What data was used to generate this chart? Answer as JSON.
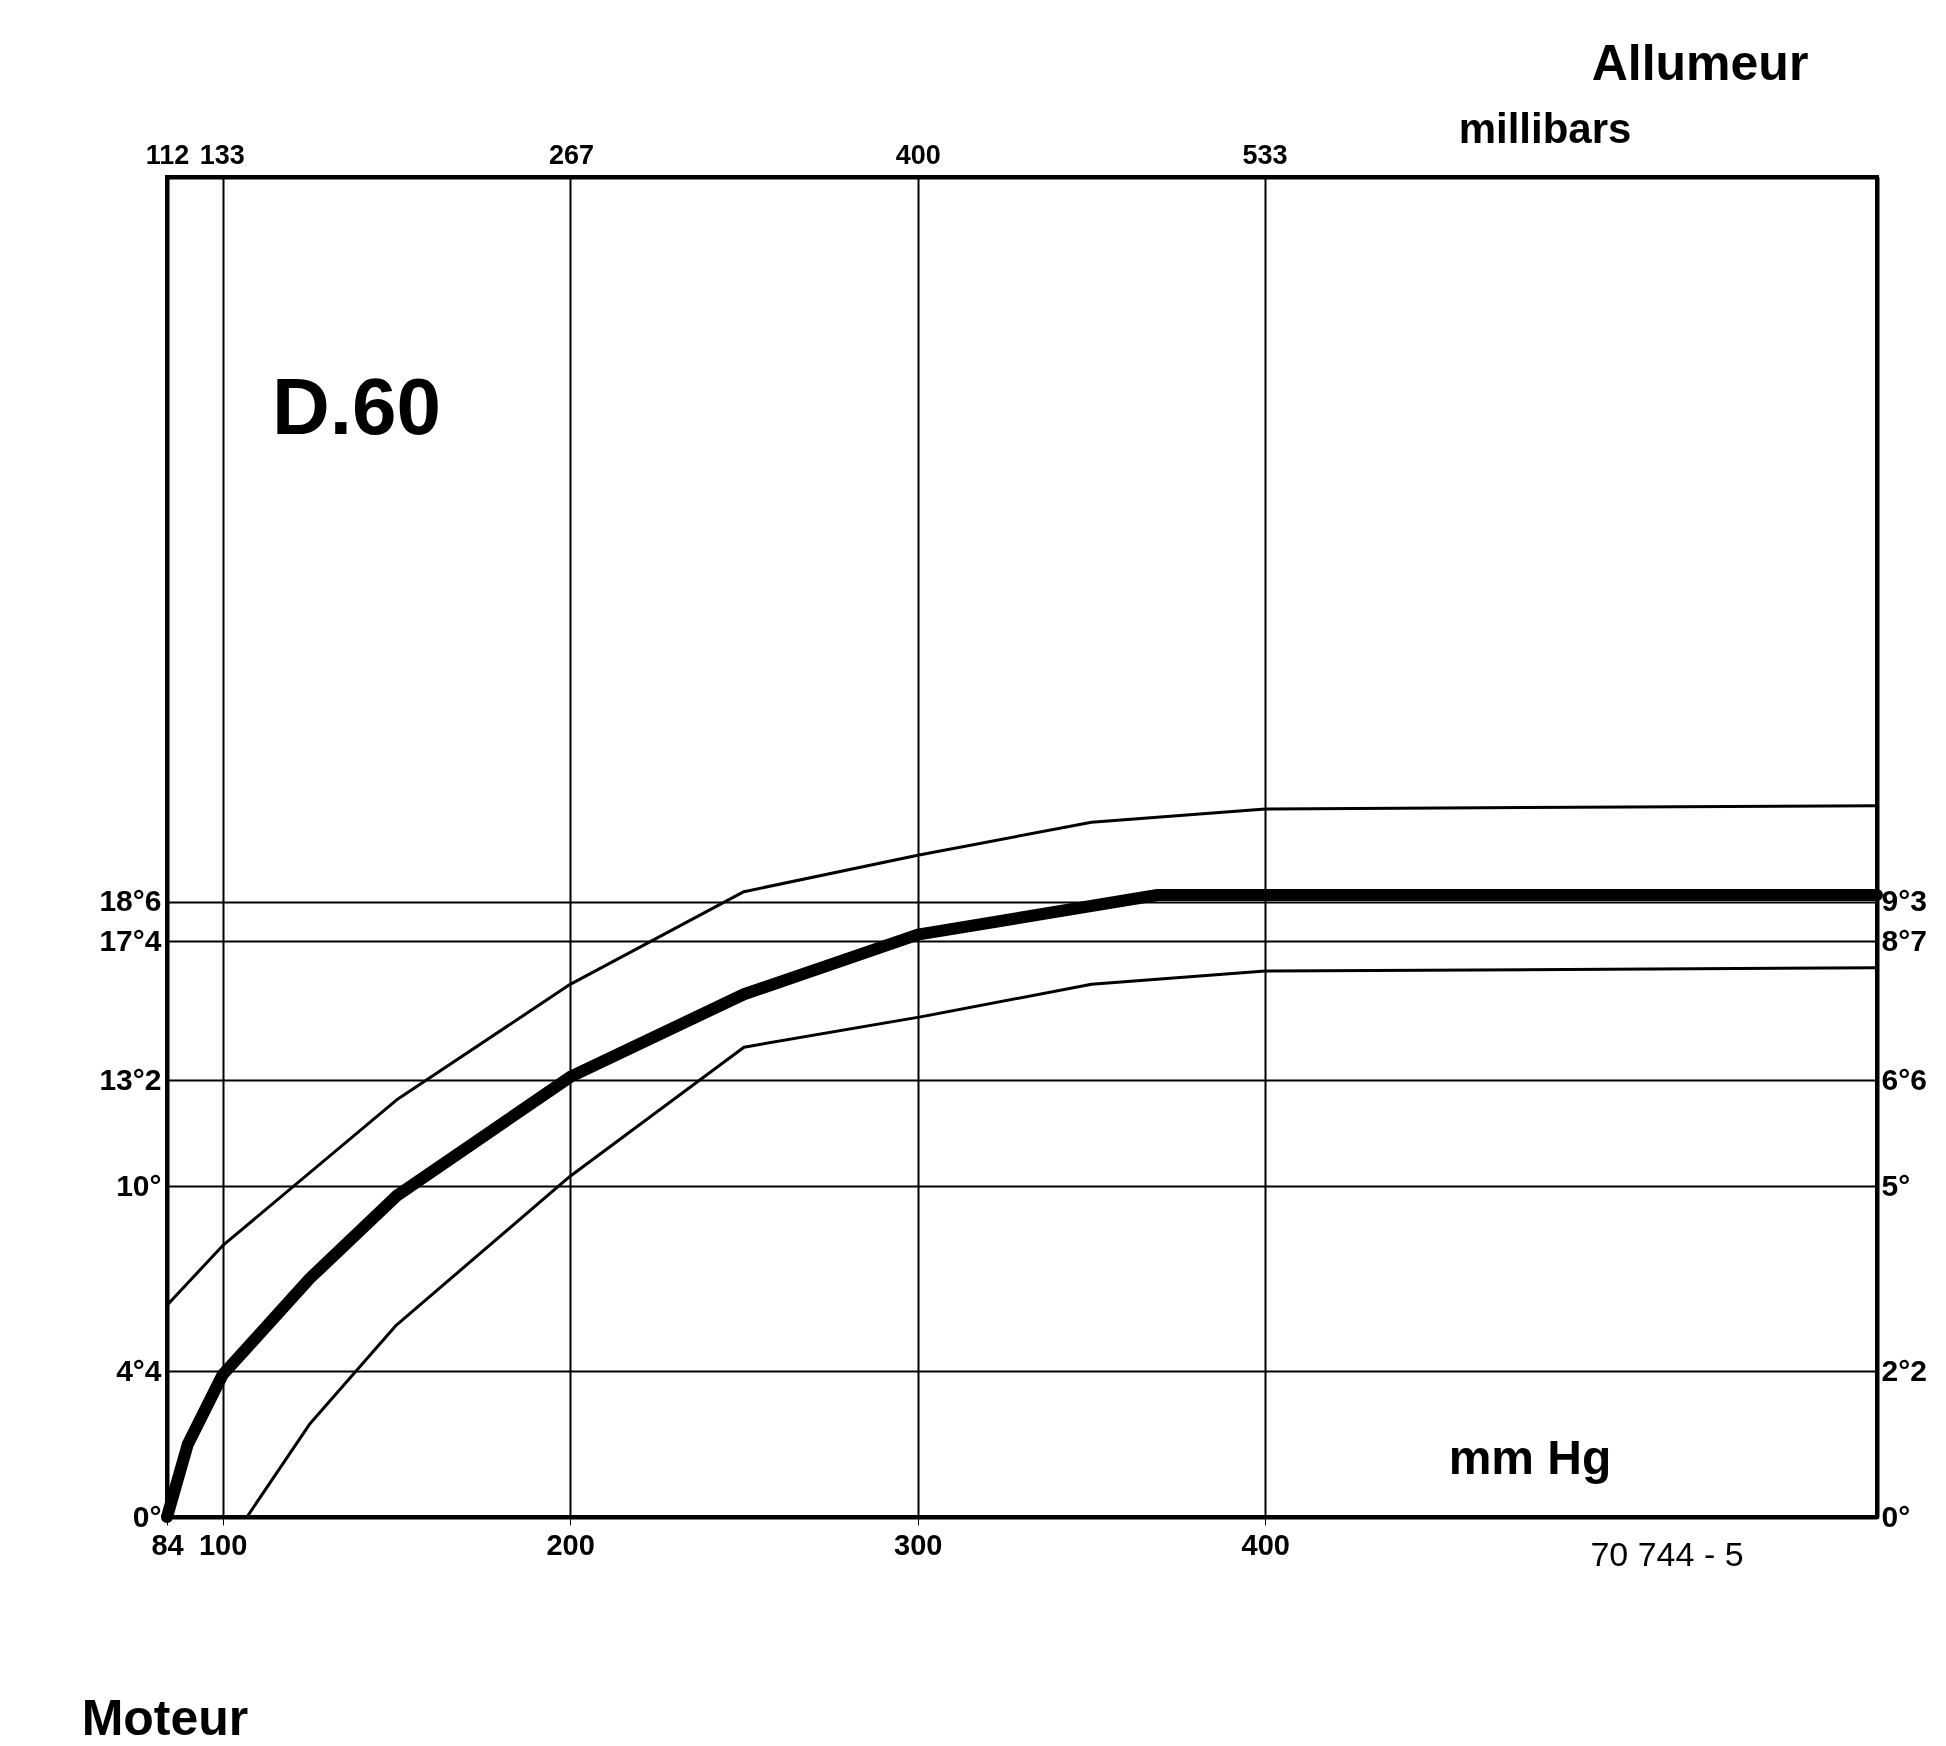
{
  "chart_data": {
    "type": "line",
    "title": "D.60",
    "xlabel": "mm Hg",
    "x2label": "millibars",
    "annotations": [
      "Allumeur",
      "Moteur",
      "70 744 - 5"
    ],
    "series": [
      {
        "color": "#000000",
        "x": [
          84,
          100,
          150,
          200,
          250,
          300,
          350,
          400,
          576
        ],
        "values": [
          6.4,
          8.2,
          12.6,
          16.1,
          18.9,
          20.0,
          21.0,
          21.4,
          21.5
        ]
      },
      {
        "color": "#000000",
        "x": [
          84,
          90,
          100,
          125,
          150,
          200,
          250,
          300,
          369,
          400,
          576
        ],
        "values": [
          0,
          2.2,
          4.3,
          7.2,
          9.7,
          13.3,
          15.8,
          17.6,
          18.8,
          18.8,
          18.8
        ]
      },
      {
        "color": "#000000",
        "x": [
          107,
          125,
          150,
          200,
          250,
          300,
          350,
          400,
          576
        ],
        "values": [
          0,
          2.8,
          5.8,
          10.3,
          14.2,
          15.1,
          16.1,
          16.5,
          16.6
        ]
      }
    ],
    "xlim": [
      84,
      576
    ],
    "xticks": [
      84,
      100,
      200,
      300,
      400
    ],
    "x2lim": [
      112,
      768
    ],
    "x2ticks": [
      112,
      133,
      267,
      400,
      533
    ],
    "ylim": [
      0,
      40.5
    ],
    "yticks": [
      {
        "value": 0,
        "label": "0°"
      },
      {
        "value": 4.4,
        "label": "4°4"
      },
      {
        "value": 10,
        "label": "10°"
      },
      {
        "value": 13.2,
        "label": "13°2"
      },
      {
        "value": 17.4,
        "label": "17°4"
      },
      {
        "value": 18.6,
        "label": "18°6"
      }
    ],
    "y2lim": [
      0,
      20.25
    ],
    "y2ticks": [
      {
        "value": 0,
        "label": "0°"
      },
      {
        "value": 2.2,
        "label": "2°2"
      },
      {
        "value": 5,
        "label": "5°"
      },
      {
        "value": 6.6,
        "label": "6°6"
      },
      {
        "value": 8.7,
        "label": "8°7"
      },
      {
        "value": 9.3,
        "label": "9°3"
      }
    ],
    "grid": true,
    "marker": "none",
    "line_style": "solid"
  }
}
